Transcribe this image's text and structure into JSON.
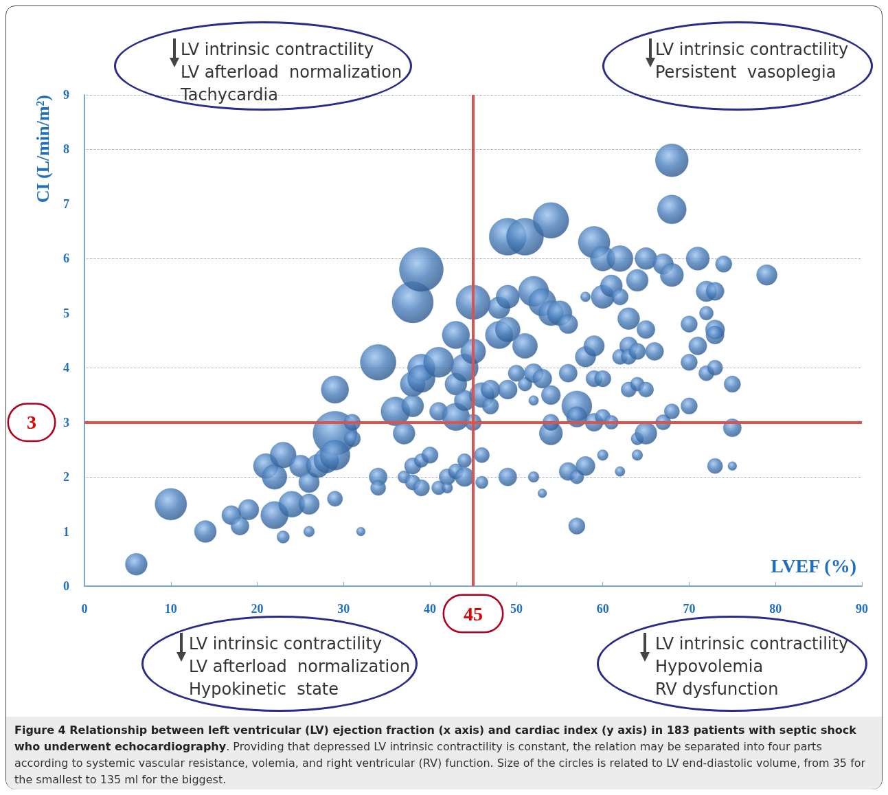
{
  "chart_data": {
    "type": "bubble",
    "xlabel": "LVEF (%)",
    "ylabel": "CI (L/min/m²)",
    "xlim": [
      0,
      90
    ],
    "xticks": [
      0,
      10,
      20,
      30,
      40,
      50,
      60,
      70,
      80,
      90
    ],
    "ylim": [
      0,
      9
    ],
    "yticks": [
      0,
      1,
      2,
      3,
      4,
      5,
      6,
      7,
      8,
      9
    ],
    "grid": "y",
    "ref_lines": [
      {
        "axis": "x",
        "value": 45,
        "label": "45",
        "color": "#d9534f"
      },
      {
        "axis": "y",
        "value": 3,
        "label": "3",
        "color": "#d9534f"
      }
    ],
    "annotations": [
      "LV intrinsic contractility\nLV afterload  normalization\nTachycardia",
      "LV intrinsic contractility\nPersistent  vasoplegia",
      "LV intrinsic contractility\nLV afterload  normalization\nHypokinetic  state",
      "LV intrinsic contractility\nHypovolemia\nRV dysfunction",
      "Figure 4 Relationship between left ventricular (LV) ejection fraction (x axis) and cardiac index (y axis) in 183 patients with septic shock who underwent echocardiography",
      ". Providing that depressed LV intrinsic contractility is constant, the relation may be separated into four parts according to systemic vascular resistance, volemia, and right ventricular (RV) function. Size of the circles is related to LV end-diastolic volume, from 35 for the smallest to 135 ml for the biggest."
    ],
    "series": [
      {
        "color": "#4a7ebb",
        "x": [
          6,
          10,
          14,
          17,
          18,
          19,
          21,
          22,
          22,
          23,
          23,
          24,
          25,
          26,
          26,
          26,
          27,
          28,
          29,
          29,
          29,
          29,
          31,
          31,
          32,
          34,
          34,
          34,
          36,
          37,
          37,
          38,
          38,
          38,
          38,
          38,
          39,
          39,
          39,
          39,
          39,
          40,
          41,
          41,
          41,
          42,
          42,
          43,
          43,
          43,
          43,
          44,
          44,
          44,
          44,
          45,
          45,
          45,
          46,
          46,
          46,
          47,
          47,
          48,
          48,
          49,
          49,
          49,
          49,
          49,
          50,
          51,
          51,
          51,
          52,
          52,
          52,
          52,
          53,
          53,
          53,
          54,
          54,
          54,
          54,
          54,
          55,
          56,
          56,
          56,
          57,
          57,
          57,
          57,
          58,
          58,
          58,
          59,
          59,
          59,
          59,
          60,
          60,
          60,
          60,
          60,
          61,
          61,
          62,
          62,
          62,
          62,
          63,
          63,
          63,
          63,
          64,
          64,
          64,
          64,
          64,
          65,
          65,
          65,
          65,
          66,
          67,
          67,
          68,
          68,
          68,
          68,
          70,
          70,
          70,
          71,
          71,
          72,
          72,
          72,
          73,
          73,
          73,
          73,
          73,
          74,
          75,
          75,
          75,
          79
        ],
        "values": [
          0.4,
          1.5,
          1.0,
          1.3,
          1.1,
          1.4,
          2.2,
          2.0,
          1.3,
          0.9,
          2.4,
          1.5,
          2.2,
          1.9,
          1.5,
          1.0,
          2.2,
          2.3,
          2.8,
          2.4,
          3.6,
          1.6,
          3.0,
          2.7,
          1.0,
          4.1,
          2.0,
          1.8,
          3.2,
          2.8,
          2.0,
          3.7,
          3.3,
          2.2,
          1.9,
          5.2,
          5.8,
          4.0,
          3.8,
          2.3,
          1.8,
          2.4,
          4.1,
          3.2,
          1.8,
          2.0,
          1.8,
          4.6,
          3.7,
          3.1,
          2.1,
          4.0,
          3.4,
          2.3,
          2.0,
          5.2,
          4.3,
          3.0,
          3.5,
          2.4,
          1.9,
          3.3,
          3.6,
          4.6,
          5.1,
          6.4,
          5.3,
          4.7,
          3.6,
          2.0,
          3.9,
          6.4,
          4.4,
          3.7,
          5.4,
          3.9,
          3.4,
          2.0,
          5.2,
          3.8,
          1.7,
          6.7,
          5.0,
          3.5,
          2.8,
          3.0,
          5.0,
          4.8,
          3.9,
          2.1,
          3.3,
          3.1,
          2.0,
          1.1,
          5.3,
          4.2,
          2.2,
          6.3,
          4.4,
          3.8,
          3.0,
          6.0,
          5.3,
          3.8,
          3.1,
          2.4,
          5.5,
          3.0,
          6.0,
          5.3,
          4.2,
          2.1,
          4.9,
          4.4,
          4.2,
          3.6,
          5.6,
          4.3,
          3.7,
          2.7,
          2.4,
          6.0,
          4.7,
          3.6,
          2.8,
          4.3,
          5.9,
          3.0,
          7.8,
          6.9,
          5.7,
          3.2,
          4.8,
          4.1,
          3.3,
          6.0,
          4.4,
          5.4,
          5.0,
          3.9,
          5.4,
          4.7,
          4.6,
          4.0,
          2.2,
          5.9,
          3.7,
          2.9,
          2.2,
          5.7
        ],
        "sizes": [
          0.25,
          0.52,
          0.25,
          0.19,
          0.17,
          0.22,
          0.32,
          0.32,
          0.39,
          0.08,
          0.35,
          0.35,
          0.25,
          0.22,
          0.22,
          0.06,
          0.28,
          0.32,
          1,
          0.47,
          0.39,
          0.12,
          0.14,
          0.14,
          0.04,
          0.66,
          0.17,
          0.12,
          0.43,
          0.25,
          0.08,
          0.32,
          0.25,
          0.14,
          0.12,
          0.88,
          1,
          0.39,
          0.39,
          0.1,
          0.14,
          0.14,
          0.47,
          0.17,
          0.1,
          0.14,
          0.06,
          0.39,
          0.25,
          0.39,
          0.12,
          0.39,
          0.22,
          0.1,
          0.19,
          0.61,
          0.32,
          0.14,
          0.32,
          0.12,
          0.08,
          0.14,
          0.19,
          0.39,
          0.25,
          0.71,
          0.28,
          0.32,
          0.19,
          0.17,
          0.14,
          0.71,
          0.32,
          0.1,
          0.47,
          0.19,
          0.05,
          0.06,
          0.39,
          0.19,
          0.04,
          0.66,
          0.32,
          0.19,
          0.28,
          0.14,
          0.32,
          0.19,
          0.17,
          0.17,
          0.47,
          0.22,
          0.1,
          0.14,
          0.05,
          0.22,
          0.19,
          0.52,
          0.22,
          0.14,
          0.17,
          0.32,
          0.28,
          0.14,
          0.12,
          0.06,
          0.25,
          0.1,
          0.35,
          0.14,
          0.12,
          0.05,
          0.25,
          0.17,
          0.12,
          0.12,
          0.25,
          0.14,
          0.1,
          0.08,
          0.06,
          0.25,
          0.17,
          0.12,
          0.25,
          0.17,
          0.22,
          0.12,
          0.56,
          0.43,
          0.28,
          0.12,
          0.14,
          0.14,
          0.14,
          0.28,
          0.17,
          0.22,
          0.1,
          0.12,
          0.17,
          0.19,
          0.17,
          0.12,
          0.12,
          0.14,
          0.14,
          0.17,
          0.04,
          0.22
        ]
      }
    ]
  }
}
